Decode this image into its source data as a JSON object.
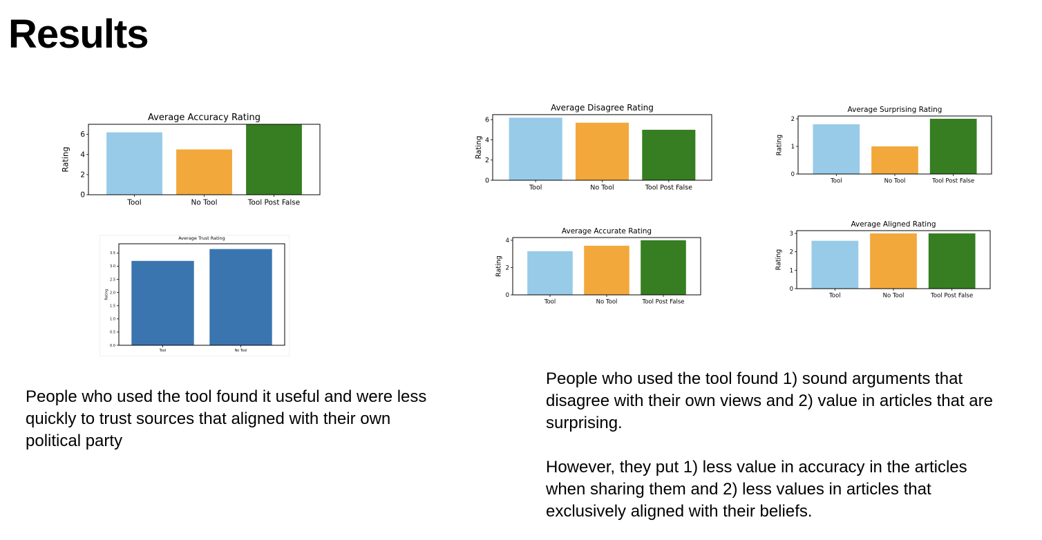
{
  "slide": {
    "title": "Results",
    "caption_left": "People who used the tool found it useful and were less quickly to trust sources that aligned with their own political party",
    "caption_right_1": "People who used the tool found 1) sound arguments that disagree with their own views and 2) value in articles that are surprising.",
    "caption_right_2": "However, they put 1) less value in accuracy in the articles when sharing them and 2) less values in articles that exclusively aligned with their beliefs."
  },
  "colors": {
    "tool": "#97cbe8",
    "no_tool": "#f2a83b",
    "tool_post_false": "#367e21",
    "trust": "#3b75af"
  },
  "chart_data": [
    {
      "id": "accuracy",
      "type": "bar",
      "title": "Average Accuracy Rating",
      "ylabel": "Rating",
      "xlabel": "",
      "categories": [
        "Tool",
        "No Tool",
        "Tool Post False"
      ],
      "values": [
        6.2,
        4.5,
        7.0
      ],
      "ylim": [
        0,
        7.0
      ],
      "yticks": [
        0,
        2,
        4,
        6
      ],
      "colors": [
        "#97cbe8",
        "#f2a83b",
        "#367e21"
      ]
    },
    {
      "id": "disagree",
      "type": "bar",
      "title": "Average Disagree Rating",
      "ylabel": "Rating",
      "xlabel": "",
      "categories": [
        "Tool",
        "No Tool",
        "Tool Post False"
      ],
      "values": [
        6.2,
        5.7,
        5.0
      ],
      "ylim": [
        0,
        6.5
      ],
      "yticks": [
        0,
        2,
        4,
        6
      ],
      "colors": [
        "#97cbe8",
        "#f2a83b",
        "#367e21"
      ]
    },
    {
      "id": "surprising",
      "type": "bar",
      "title": "Average Surprising Rating",
      "ylabel": "Rating",
      "xlabel": "",
      "categories": [
        "Tool",
        "No Tool",
        "Tool Post False"
      ],
      "values": [
        1.8,
        1.0,
        2.0
      ],
      "ylim": [
        0,
        2.1
      ],
      "yticks": [
        0,
        1,
        2
      ],
      "colors": [
        "#97cbe8",
        "#f2a83b",
        "#367e21"
      ]
    },
    {
      "id": "trust",
      "type": "bar",
      "title": "Average Trust Rating",
      "ylabel": "Rating",
      "xlabel": "",
      "categories": [
        "Tool",
        "No Tool"
      ],
      "values": [
        3.2,
        3.65
      ],
      "ylim": [
        0,
        3.85
      ],
      "yticks": [
        0.0,
        0.5,
        1.0,
        1.5,
        2.0,
        2.5,
        3.0,
        3.5
      ],
      "ytick_labels": [
        "0.0",
        "0.5",
        "1.0",
        "1.5",
        "2.0",
        "2.5",
        "3.0",
        "3.5"
      ],
      "colors": [
        "#3b75af",
        "#3b75af"
      ]
    },
    {
      "id": "accurate",
      "type": "bar",
      "title": "Average Accurate Rating",
      "ylabel": "Rating",
      "xlabel": "",
      "categories": [
        "Tool",
        "No Tool",
        "Tool Post False"
      ],
      "values": [
        3.2,
        3.6,
        4.0
      ],
      "ylim": [
        0,
        4.2
      ],
      "yticks": [
        0,
        2,
        4
      ],
      "colors": [
        "#97cbe8",
        "#f2a83b",
        "#367e21"
      ]
    },
    {
      "id": "aligned",
      "type": "bar",
      "title": "Average Aligned Rating",
      "ylabel": "Rating",
      "xlabel": "",
      "categories": [
        "Tool",
        "No Tool",
        "Tool Post False"
      ],
      "values": [
        2.6,
        3.0,
        3.0
      ],
      "ylim": [
        0,
        3.15
      ],
      "yticks": [
        0,
        1,
        2,
        3
      ],
      "colors": [
        "#97cbe8",
        "#f2a83b",
        "#367e21"
      ]
    }
  ]
}
